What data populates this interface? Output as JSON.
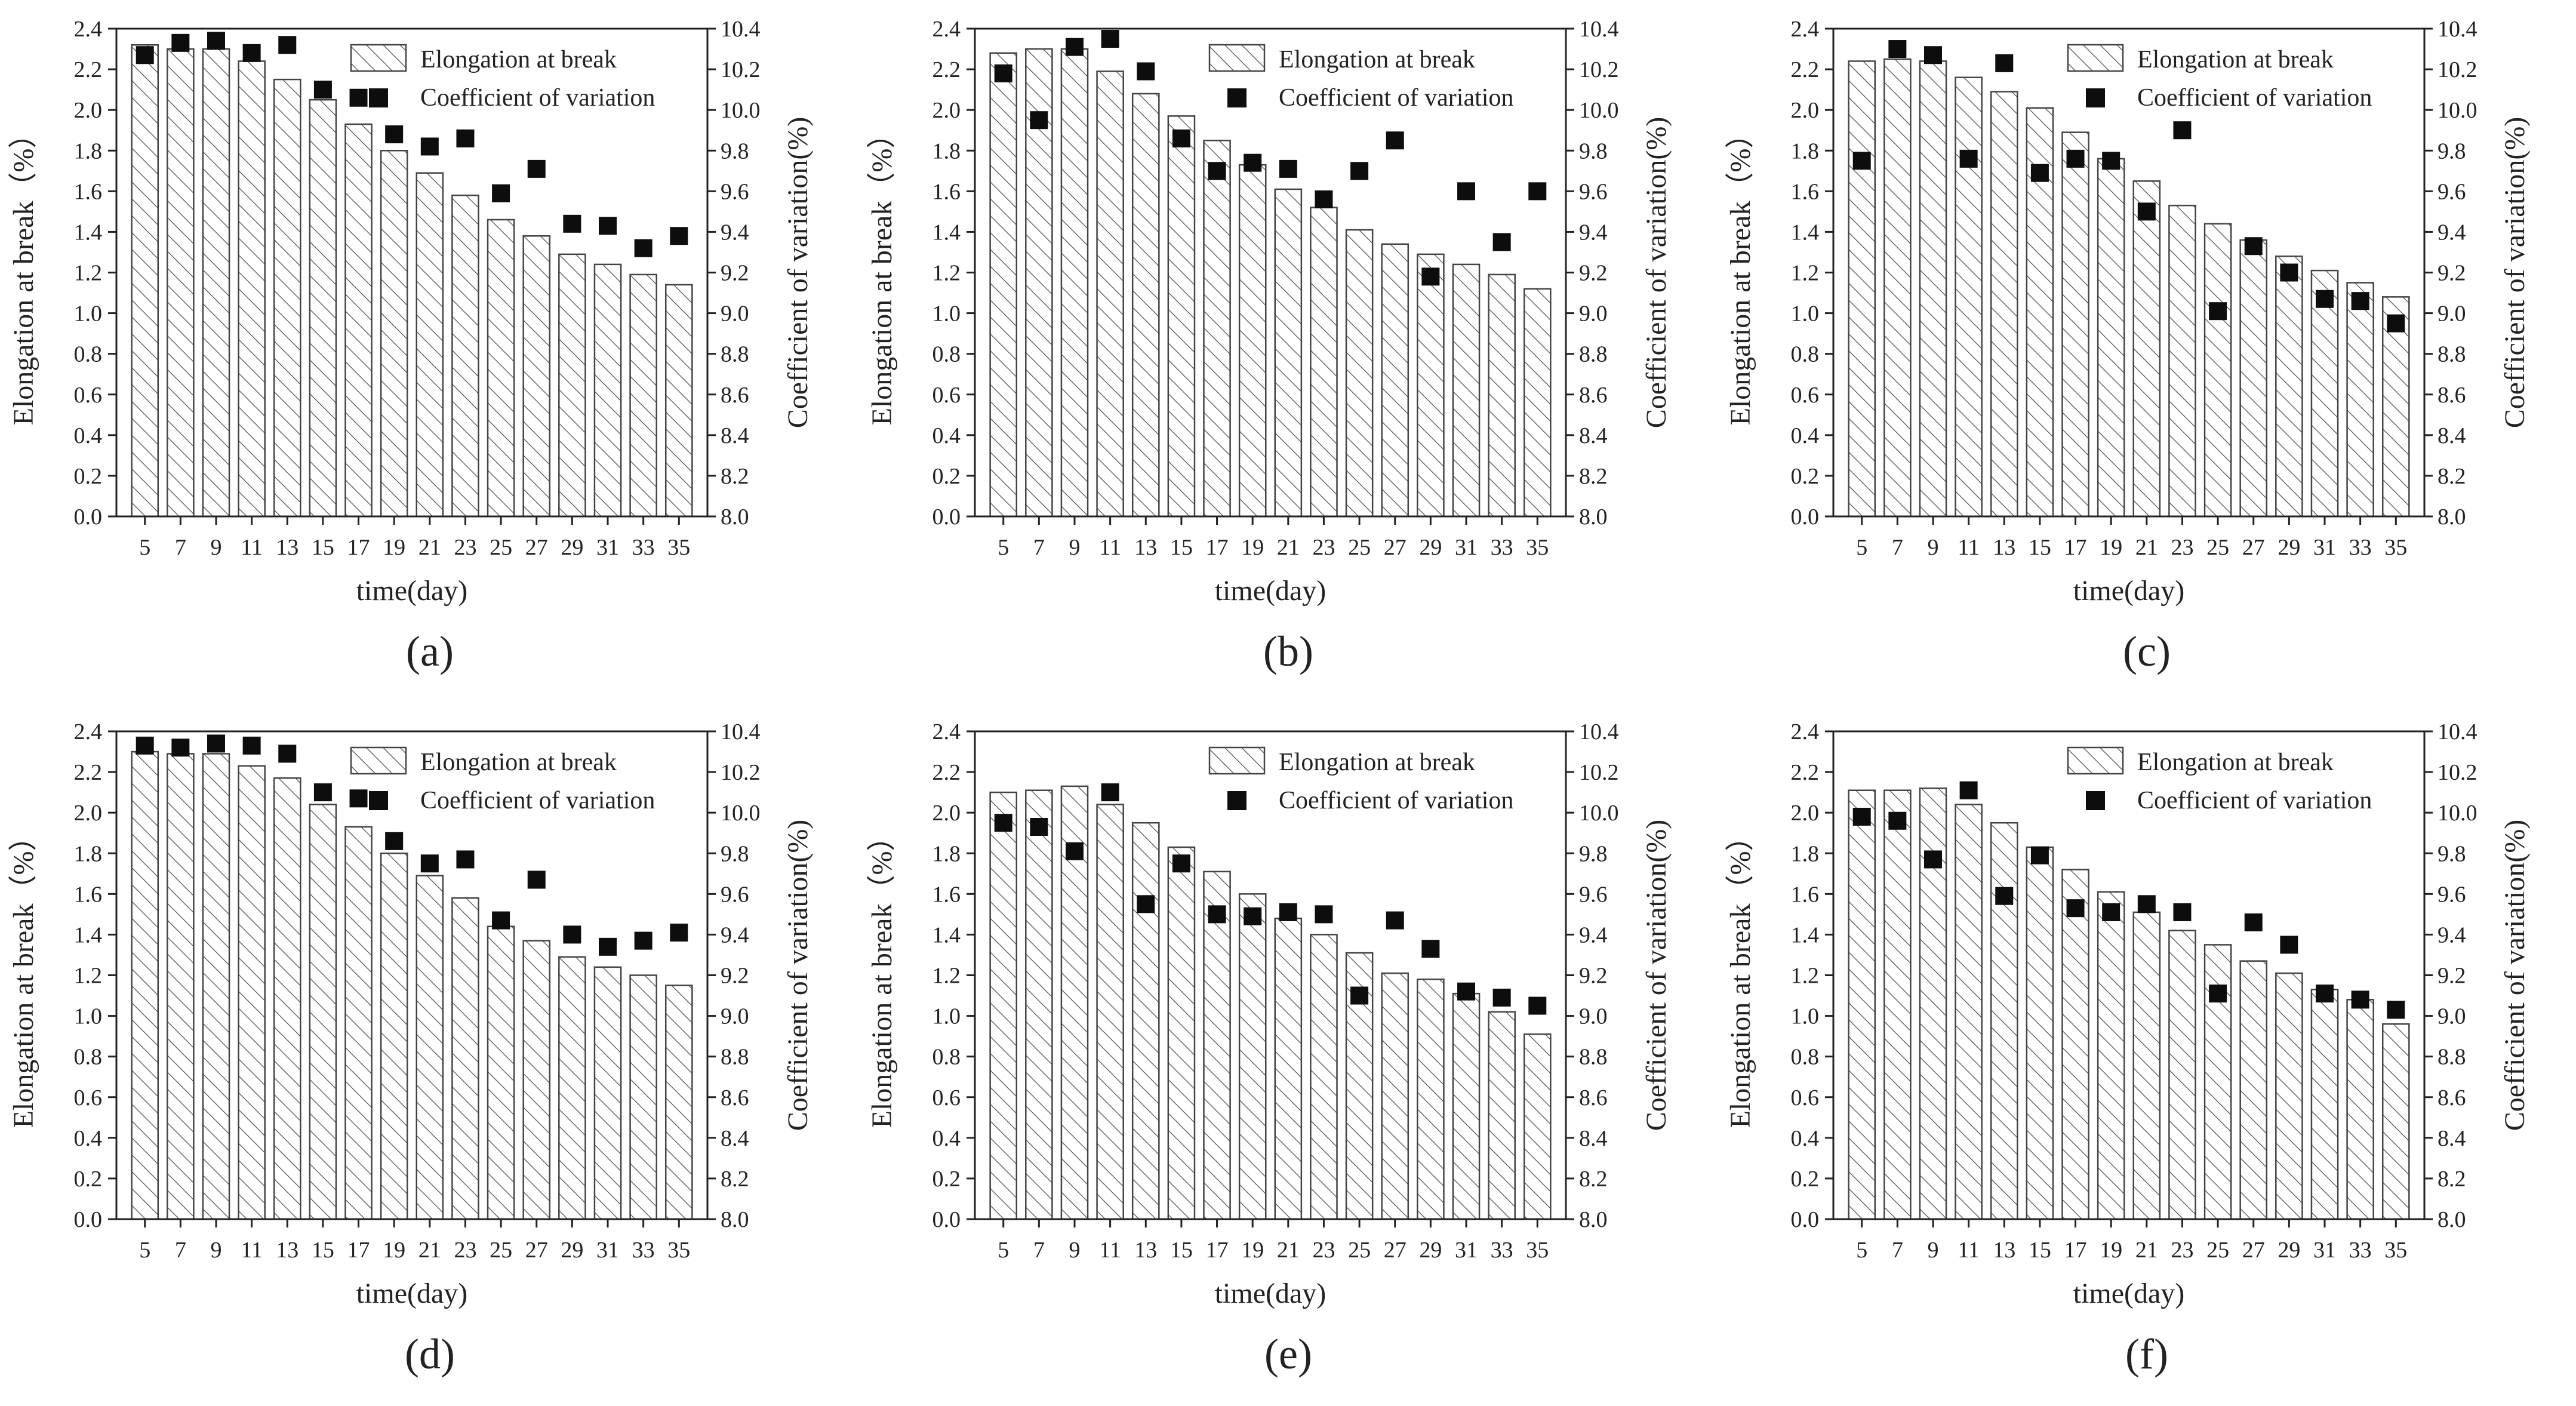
{
  "figure": {
    "legend": {
      "bar_label": "Elongation at break",
      "marker_label": "Coefficient of variation"
    },
    "xlabel": "time(day)",
    "ylabel_left": "Elongation at break（%）",
    "ylabel_right": "Coefficient of variation(%)"
  },
  "colors": {
    "bar_hatch": "#555555",
    "marker": "#0d0d0d",
    "axis": "#222222"
  },
  "chart_data": [
    {
      "type": "bar",
      "panel_label": "(a)",
      "categories": [
        "5",
        "7",
        "9",
        "11",
        "13",
        "15",
        "17",
        "19",
        "21",
        "23",
        "25",
        "27",
        "29",
        "31",
        "33",
        "35"
      ],
      "series": [
        {
          "name": "Elongation at break",
          "axis": "left",
          "values": [
            2.32,
            2.3,
            2.3,
            2.24,
            2.15,
            2.05,
            1.93,
            1.8,
            1.69,
            1.58,
            1.46,
            1.38,
            1.29,
            1.24,
            1.19,
            1.14
          ]
        },
        {
          "name": "Coefficient of variation",
          "axis": "right",
          "values": [
            10.27,
            10.33,
            10.34,
            10.28,
            10.32,
            10.1,
            10.06,
            9.88,
            9.82,
            9.86,
            9.59,
            9.71,
            9.44,
            9.43,
            9.32,
            9.38
          ]
        }
      ],
      "xlabel": "time(day)",
      "ylabel": "Elongation at break（%）",
      "ylabel_right": "Coefficient of variation(%)",
      "ylim": [
        0,
        2.4
      ],
      "ylim_right": [
        8.0,
        10.4
      ],
      "yticks": [
        "0.0",
        "0.2",
        "0.4",
        "0.6",
        "0.8",
        "1.0",
        "1.2",
        "1.4",
        "1.6",
        "1.8",
        "2.0",
        "2.2",
        "2.4"
      ],
      "yticks_right": [
        "8.0",
        "8.2",
        "8.4",
        "8.6",
        "8.8",
        "9.0",
        "9.2",
        "9.4",
        "9.6",
        "9.8",
        "10.0",
        "10.2",
        "10.4"
      ],
      "legend": "top-right"
    },
    {
      "type": "bar",
      "panel_label": "(b)",
      "categories": [
        "5",
        "7",
        "9",
        "11",
        "13",
        "15",
        "17",
        "19",
        "21",
        "23",
        "25",
        "27",
        "29",
        "31",
        "33",
        "35"
      ],
      "series": [
        {
          "name": "Elongation at break",
          "axis": "left",
          "values": [
            2.28,
            2.3,
            2.3,
            2.19,
            2.08,
            1.97,
            1.85,
            1.73,
            1.61,
            1.52,
            1.41,
            1.34,
            1.29,
            1.24,
            1.19,
            1.12
          ]
        },
        {
          "name": "Coefficient of variation",
          "axis": "right",
          "values": [
            10.18,
            9.95,
            10.31,
            10.35,
            10.19,
            9.86,
            9.7,
            9.74,
            9.71,
            9.56,
            9.7,
            9.85,
            9.18,
            9.6,
            9.35,
            9.6
          ]
        }
      ],
      "xlabel": "time(day)",
      "ylabel": "Elongation at break（%）",
      "ylabel_right": "Coefficient of variation(%)",
      "ylim": [
        0,
        2.4
      ],
      "ylim_right": [
        8.0,
        10.4
      ],
      "yticks": [
        "0.0",
        "0.2",
        "0.4",
        "0.6",
        "0.8",
        "1.0",
        "1.2",
        "1.4",
        "1.6",
        "1.8",
        "2.0",
        "2.2",
        "2.4"
      ],
      "yticks_right": [
        "8.0",
        "8.2",
        "8.4",
        "8.6",
        "8.8",
        "9.0",
        "9.2",
        "9.4",
        "9.6",
        "9.8",
        "10.0",
        "10.2",
        "10.4"
      ],
      "legend": "top-right"
    },
    {
      "type": "bar",
      "panel_label": "(c)",
      "categories": [
        "5",
        "7",
        "9",
        "11",
        "13",
        "15",
        "17",
        "19",
        "21",
        "23",
        "25",
        "27",
        "29",
        "31",
        "33",
        "35"
      ],
      "series": [
        {
          "name": "Elongation at break",
          "axis": "left",
          "values": [
            2.24,
            2.25,
            2.24,
            2.16,
            2.09,
            2.01,
            1.89,
            1.76,
            1.65,
            1.53,
            1.44,
            1.36,
            1.28,
            1.21,
            1.15,
            1.08
          ]
        },
        {
          "name": "Coefficient of variation",
          "axis": "right",
          "values": [
            9.75,
            10.3,
            10.27,
            9.76,
            10.23,
            9.69,
            9.76,
            9.75,
            9.5,
            9.9,
            9.01,
            9.33,
            9.2,
            9.07,
            9.06,
            8.95
          ]
        }
      ],
      "xlabel": "time(day)",
      "ylabel": "Elongation at break（%）",
      "ylabel_right": "Coefficient of variation(%)",
      "ylim": [
        0,
        2.4
      ],
      "ylim_right": [
        8.0,
        10.4
      ],
      "yticks": [
        "0.0",
        "0.2",
        "0.4",
        "0.6",
        "0.8",
        "1.0",
        "1.2",
        "1.4",
        "1.6",
        "1.8",
        "2.0",
        "2.2",
        "2.4"
      ],
      "yticks_right": [
        "8.0",
        "8.2",
        "8.4",
        "8.6",
        "8.8",
        "9.0",
        "9.2",
        "9.4",
        "9.6",
        "9.8",
        "10.0",
        "10.2",
        "10.4"
      ],
      "legend": "top-right"
    },
    {
      "type": "bar",
      "panel_label": "(d)",
      "categories": [
        "5",
        "7",
        "9",
        "11",
        "13",
        "15",
        "17",
        "19",
        "21",
        "23",
        "25",
        "27",
        "29",
        "31",
        "33",
        "35"
      ],
      "series": [
        {
          "name": "Elongation at break",
          "axis": "left",
          "values": [
            2.3,
            2.29,
            2.29,
            2.23,
            2.17,
            2.04,
            1.93,
            1.8,
            1.69,
            1.58,
            1.44,
            1.37,
            1.29,
            1.24,
            1.2,
            1.15
          ]
        },
        {
          "name": "Coefficient of variation",
          "axis": "right",
          "values": [
            10.33,
            10.32,
            10.34,
            10.33,
            10.29,
            10.1,
            10.07,
            9.86,
            9.75,
            9.77,
            9.47,
            9.67,
            9.4,
            9.34,
            9.37,
            9.41
          ]
        }
      ],
      "xlabel": "time(day)",
      "ylabel": "Elongation at break（%）",
      "ylabel_right": "Coefficient of variation(%)",
      "ylim": [
        0,
        2.4
      ],
      "ylim_right": [
        8.0,
        10.4
      ],
      "yticks": [
        "0.0",
        "0.2",
        "0.4",
        "0.6",
        "0.8",
        "1.0",
        "1.2",
        "1.4",
        "1.6",
        "1.8",
        "2.0",
        "2.2",
        "2.4"
      ],
      "yticks_right": [
        "8.0",
        "8.2",
        "8.4",
        "8.6",
        "8.8",
        "9.0",
        "9.2",
        "9.4",
        "9.6",
        "9.8",
        "10.0",
        "10.2",
        "10.4"
      ],
      "legend": "top-right"
    },
    {
      "type": "bar",
      "panel_label": "(e)",
      "categories": [
        "5",
        "7",
        "9",
        "11",
        "13",
        "15",
        "17",
        "19",
        "21",
        "23",
        "25",
        "27",
        "29",
        "31",
        "33",
        "35"
      ],
      "series": [
        {
          "name": "Elongation at break",
          "axis": "left",
          "values": [
            2.1,
            2.11,
            2.13,
            2.04,
            1.95,
            1.83,
            1.71,
            1.6,
            1.48,
            1.4,
            1.31,
            1.21,
            1.18,
            1.11,
            1.02,
            0.91
          ]
        },
        {
          "name": "Coefficient of variation",
          "axis": "right",
          "values": [
            9.95,
            9.93,
            9.81,
            10.1,
            9.55,
            9.75,
            9.5,
            9.49,
            9.51,
            9.5,
            9.1,
            9.47,
            9.33,
            9.12,
            9.09,
            9.05
          ]
        }
      ],
      "xlabel": "time(day)",
      "ylabel": "Elongation at break（%）",
      "ylabel_right": "Coefficient of variation(%)",
      "ylim": [
        0,
        2.4
      ],
      "ylim_right": [
        8.0,
        10.4
      ],
      "yticks": [
        "0.0",
        "0.2",
        "0.4",
        "0.6",
        "0.8",
        "1.0",
        "1.2",
        "1.4",
        "1.6",
        "1.8",
        "2.0",
        "2.2",
        "2.4"
      ],
      "yticks_right": [
        "8.0",
        "8.2",
        "8.4",
        "8.6",
        "8.8",
        "9.0",
        "9.2",
        "9.4",
        "9.6",
        "9.8",
        "10.0",
        "10.2",
        "10.4"
      ],
      "legend": "top-right"
    },
    {
      "type": "bar",
      "panel_label": "(f)",
      "categories": [
        "5",
        "7",
        "9",
        "11",
        "13",
        "15",
        "17",
        "19",
        "21",
        "23",
        "25",
        "27",
        "29",
        "31",
        "33",
        "35"
      ],
      "series": [
        {
          "name": "Elongation at break",
          "axis": "left",
          "values": [
            2.11,
            2.11,
            2.12,
            2.04,
            1.95,
            1.83,
            1.72,
            1.61,
            1.51,
            1.42,
            1.35,
            1.27,
            1.21,
            1.13,
            1.08,
            0.96
          ]
        },
        {
          "name": "Coefficient of variation",
          "axis": "right",
          "values": [
            9.98,
            9.96,
            9.77,
            10.11,
            9.59,
            9.79,
            9.53,
            9.51,
            9.55,
            9.51,
            9.11,
            9.46,
            9.35,
            9.11,
            9.08,
            9.03
          ]
        }
      ],
      "xlabel": "time(day)",
      "ylabel": "Elongation at break（%）",
      "ylabel_right": "Coefficient of variation(%)",
      "ylim": [
        0,
        2.4
      ],
      "ylim_right": [
        8.0,
        10.4
      ],
      "yticks": [
        "0.0",
        "0.2",
        "0.4",
        "0.6",
        "0.8",
        "1.0",
        "1.2",
        "1.4",
        "1.6",
        "1.8",
        "2.0",
        "2.2",
        "2.4"
      ],
      "yticks_right": [
        "8.0",
        "8.2",
        "8.4",
        "8.6",
        "8.8",
        "9.0",
        "9.2",
        "9.4",
        "9.6",
        "9.8",
        "10.0",
        "10.2",
        "10.4"
      ],
      "legend": "top-right"
    }
  ]
}
